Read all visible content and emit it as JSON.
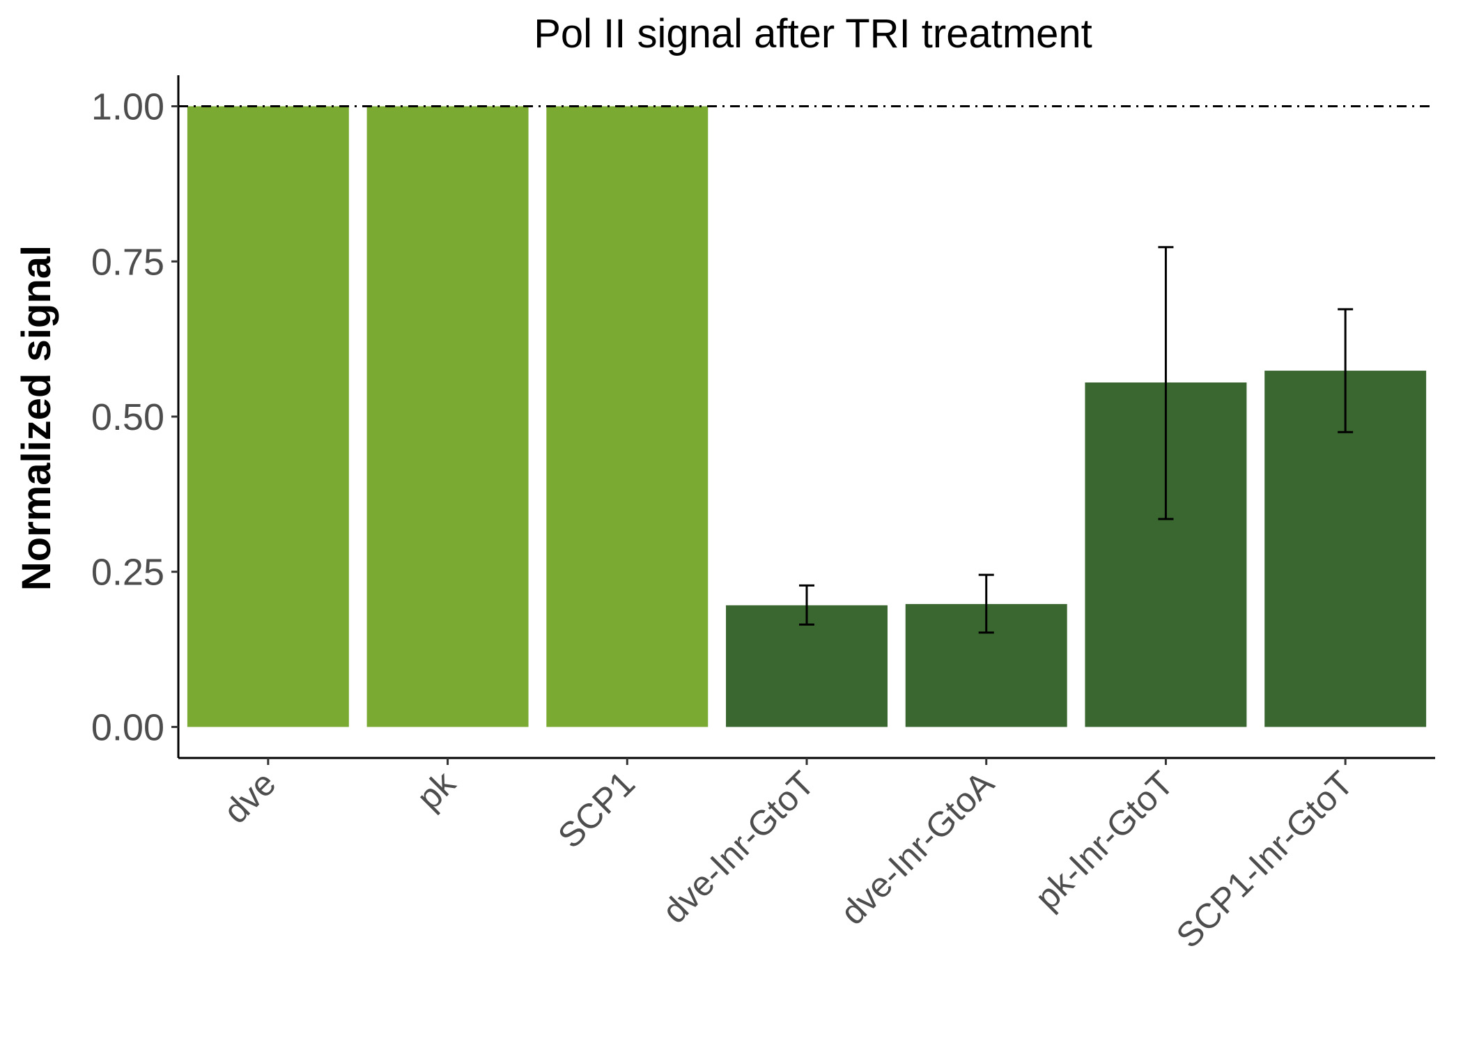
{
  "chart_data": {
    "type": "bar",
    "title": "Pol II signal after TRI treatment",
    "xlabel": "",
    "ylabel": "Normalized signal",
    "ylim": [
      -0.05,
      1.05
    ],
    "yticks": [
      "0.00",
      "0.25",
      "0.50",
      "0.75",
      "1.00"
    ],
    "categories": [
      "dve",
      "pk",
      "SCP1",
      "dve-Inr-GtoT",
      "dve-Inr-GtoA",
      "pk-Inr-GtoT",
      "SCP1-Inr-GtoT"
    ],
    "values": [
      1.0,
      1.0,
      1.0,
      0.196,
      0.198,
      0.555,
      0.574
    ],
    "error_low": [
      null,
      null,
      null,
      0.165,
      0.152,
      0.335,
      0.475
    ],
    "error_high": [
      null,
      null,
      null,
      0.228,
      0.245,
      0.773,
      0.673
    ],
    "bar_colors": [
      "#7aaa31",
      "#7aaa31",
      "#7aaa31",
      "#3a6630",
      "#3a6630",
      "#3a6630",
      "#3a6630"
    ],
    "reference_line": 1.0,
    "grid": false,
    "legend": "none"
  }
}
